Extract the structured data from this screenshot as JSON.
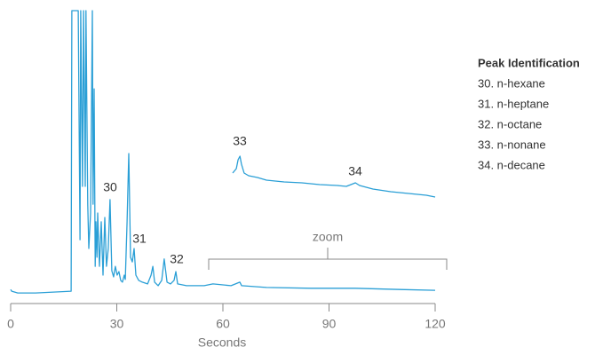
{
  "chart_data": [
    {
      "type": "line",
      "xlabel": "Seconds",
      "xlim": [
        0,
        120
      ],
      "xticks": [
        0,
        30,
        60,
        90,
        120
      ],
      "ylim": [
        0,
        100
      ],
      "color": "#2a9fd6",
      "x": [
        0,
        0.3,
        2.0,
        7.0,
        12.1,
        17.1,
        17.3,
        19.1,
        19.6,
        19.8,
        20.3,
        20.6,
        21.1,
        21.3,
        21.8,
        22.1,
        22.6,
        23.1,
        23.3,
        23.6,
        23.9,
        24.1,
        24.4,
        24.6,
        25.1,
        25.6,
        26.1,
        26.6,
        27.1,
        27.6,
        28.1,
        28.6,
        29.1,
        29.6,
        30.1,
        30.6,
        31.1,
        31.6,
        32.1,
        32.4,
        32.9,
        33.4,
        33.9,
        34.4,
        34.9,
        35.4,
        36.2,
        37.2,
        38.7,
        39.7,
        40.2,
        40.7,
        41.7,
        42.7,
        43.4,
        44.2,
        45.2,
        46.2,
        46.7,
        47.2,
        49.7,
        54.7,
        57.2,
        62.3,
        64.8,
        65.3,
        72.3,
        84.9,
        97.4,
        110,
        120
      ],
      "values": [
        4.8,
        4.2,
        3.6,
        3.6,
        3.9,
        4.2,
        100,
        100,
        21.8,
        100,
        40,
        100,
        40,
        100,
        33.9,
        18.8,
        30.9,
        100,
        33.9,
        73.3,
        12.7,
        27.9,
        15.8,
        30.9,
        12.7,
        27.9,
        9.7,
        29.4,
        12.7,
        18.8,
        35.5,
        11.2,
        9.1,
        12.7,
        9.7,
        10.9,
        7.9,
        7.3,
        9.7,
        8.2,
        27.9,
        51.2,
        15.8,
        14.2,
        18.8,
        9.7,
        7.9,
        7.3,
        6.7,
        9.7,
        12.7,
        7.3,
        6.1,
        7.9,
        15.2,
        7.3,
        6.7,
        7.9,
        10.9,
        6.7,
        6.1,
        6.1,
        6.7,
        6.1,
        7.3,
        6.1,
        5.5,
        5.2,
        5.2,
        4.8,
        4.5
      ],
      "annotations": [
        "30",
        "31",
        "32",
        "zoom"
      ]
    },
    {
      "type": "line",
      "xlim": [
        56,
        123
      ],
      "ylim": [
        4,
        12
      ],
      "color": "#2a9fd6",
      "x": [
        56,
        57.2,
        57.8,
        58.4,
        58.9,
        59.8,
        61.3,
        64.2,
        67.2,
        73,
        78.9,
        84.8,
        90.7,
        93.6,
        95.1,
        96.6,
        98,
        102.4,
        108.3,
        114.2,
        120.1,
        123
      ],
      "values": [
        7.5,
        8,
        9,
        9.4,
        8.5,
        7.5,
        7.2,
        7,
        6.7,
        6.5,
        6.4,
        6.2,
        6.1,
        6,
        6.2,
        6.4,
        6.1,
        5.7,
        5.4,
        5.2,
        5,
        4.8
      ],
      "annotations": [
        "33",
        "34"
      ]
    }
  ],
  "peak_identification": {
    "title": "Peak Identification",
    "items": [
      "30. n-hexane",
      "31. n-heptane",
      "32. n-octane",
      "33. n-nonane",
      "34. n-decane"
    ]
  }
}
